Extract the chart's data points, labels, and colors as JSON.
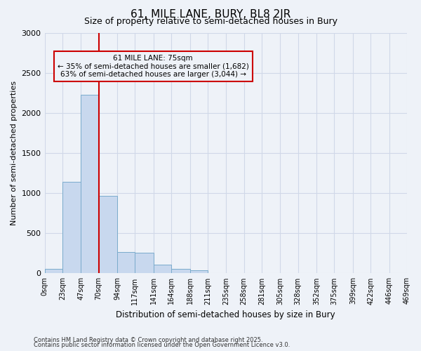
{
  "title": "61, MILE LANE, BURY, BL8 2JR",
  "subtitle": "Size of property relative to semi-detached houses in Bury",
  "xlabel": "Distribution of semi-detached houses by size in Bury",
  "ylabel": "Number of semi-detached properties",
  "bins": [
    0,
    23,
    47,
    70,
    94,
    117,
    141,
    164,
    188,
    211,
    235,
    258,
    281,
    305,
    328,
    352,
    375,
    399,
    422,
    446,
    469
  ],
  "bin_labels": [
    "0sqm",
    "23sqm",
    "47sqm",
    "70sqm",
    "94sqm",
    "117sqm",
    "141sqm",
    "164sqm",
    "188sqm",
    "211sqm",
    "235sqm",
    "258sqm",
    "281sqm",
    "305sqm",
    "328sqm",
    "352sqm",
    "375sqm",
    "399sqm",
    "422sqm",
    "446sqm",
    "469sqm"
  ],
  "counts": [
    60,
    1140,
    2230,
    970,
    270,
    260,
    105,
    55,
    35,
    5,
    0,
    0,
    0,
    0,
    0,
    0,
    0,
    0,
    0,
    0
  ],
  "bar_color": "#c8d8ee",
  "bar_edge_color": "#7aabcc",
  "property_size": 75,
  "property_label": "61 MILE LANE: 75sqm",
  "pct_smaller": 35,
  "pct_larger": 63,
  "n_smaller": 1682,
  "n_larger": 3044,
  "vline_color": "#cc0000",
  "ylim": [
    0,
    3000
  ],
  "yticks": [
    0,
    500,
    1000,
    1500,
    2000,
    2500,
    3000
  ],
  "annotation_box_color": "#cc0000",
  "grid_color": "#d0d8e8",
  "bg_color": "#eef2f8",
  "footnote1": "Contains HM Land Registry data © Crown copyright and database right 2025.",
  "footnote2": "Contains public sector information licensed under the Open Government Licence v3.0."
}
